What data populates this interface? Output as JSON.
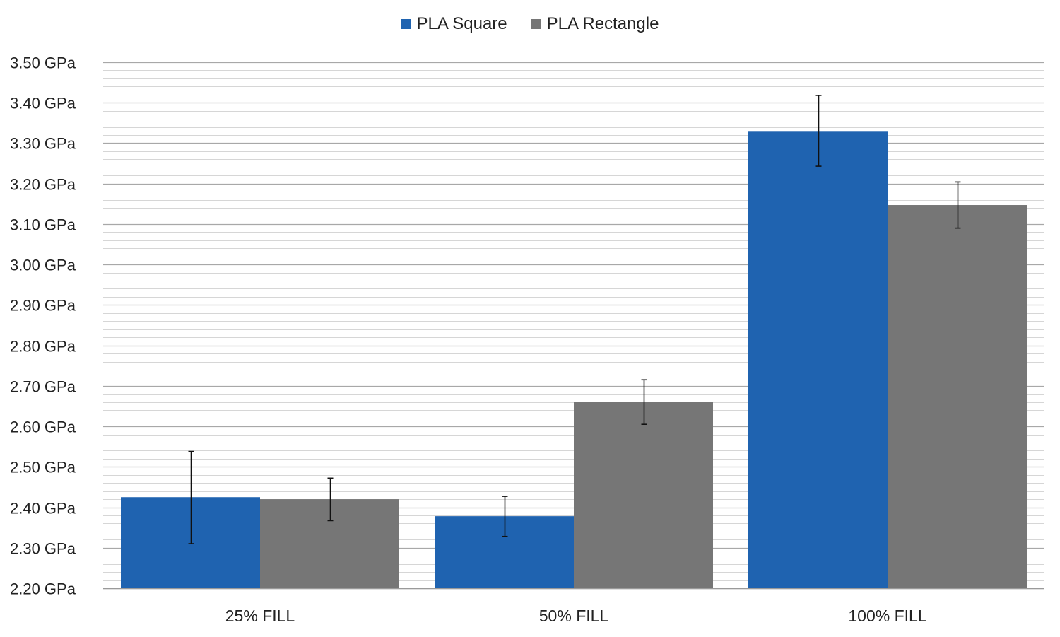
{
  "chart_data": {
    "type": "bar",
    "title": "",
    "xlabel": "",
    "ylabel": "",
    "categories": [
      "25% FILL",
      "50% FILL",
      "100% FILL"
    ],
    "series": [
      {
        "name": "PLA Square",
        "color": "#1f63b0",
        "values": [
          2.425,
          2.378,
          3.33
        ],
        "error_low": [
          2.31,
          2.328,
          3.243
        ],
        "error_high": [
          2.538,
          2.427,
          3.418
        ]
      },
      {
        "name": "PLA Rectangle",
        "color": "#767676",
        "values": [
          2.42,
          2.66,
          3.147
        ],
        "error_low": [
          2.367,
          2.605,
          3.09
        ],
        "error_high": [
          2.472,
          2.715,
          3.204
        ]
      }
    ],
    "ylim": [
      2.2,
      3.5
    ],
    "y_ticks": [
      "2.20 GPa",
      "2.30 GPa",
      "2.40 GPa",
      "2.50 GPa",
      "2.60 GPa",
      "2.70 GPa",
      "2.80 GPa",
      "2.90 GPa",
      "3.00 GPa",
      "3.10 GPa",
      "3.20 GPa",
      "3.30 GPa",
      "3.40 GPa",
      "3.50 GPa"
    ],
    "y_tick_values": [
      2.2,
      2.3,
      2.4,
      2.5,
      2.6,
      2.7,
      2.8,
      2.9,
      3.0,
      3.1,
      3.2,
      3.3,
      3.4,
      3.5
    ],
    "minor_grid_step": 0.02,
    "grid": true,
    "legend_position": "top-center"
  }
}
